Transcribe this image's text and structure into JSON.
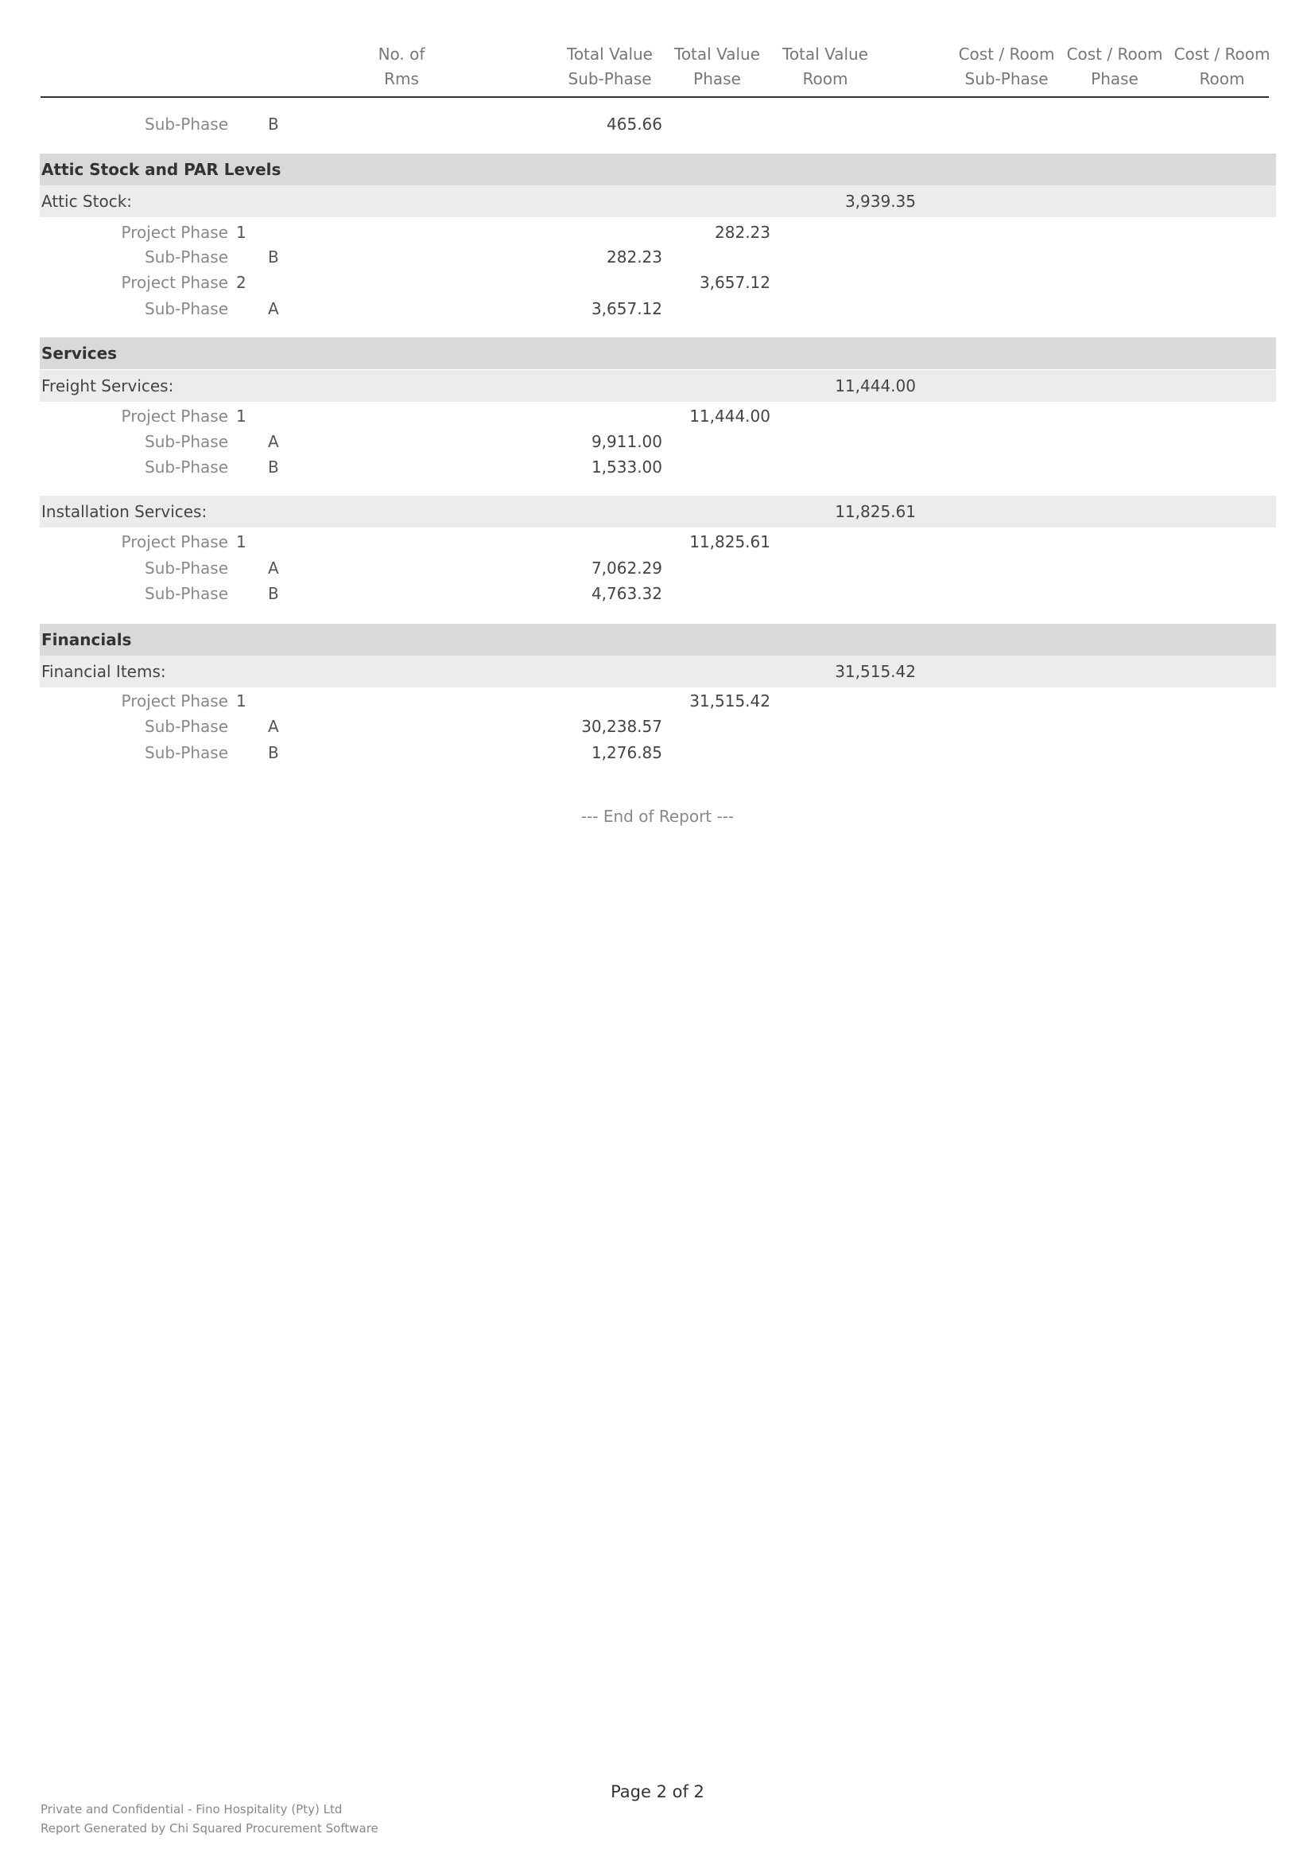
{
  "header": {
    "columns": [
      {
        "line1": "No. of",
        "line2": "Rms"
      },
      {
        "line1": "Total Value",
        "line2": "Sub-Phase"
      },
      {
        "line1": "Total Value",
        "line2": "Phase"
      },
      {
        "line1": "Total Value",
        "line2": "Room"
      },
      {
        "line1": "Cost / Room",
        "line2": "Sub-Phase"
      },
      {
        "line1": "Cost / Room",
        "line2": "Phase"
      },
      {
        "line1": "Cost / Room",
        "line2": "Room"
      }
    ]
  },
  "rows": [
    {
      "type": "sub",
      "label": "Sub-Phase",
      "code": "B",
      "subphase": "465.66"
    },
    {
      "type": "section",
      "label": "Attic Stock and PAR Levels"
    },
    {
      "type": "category",
      "label": "Attic Stock:",
      "room": "3,939.35"
    },
    {
      "type": "phase",
      "label": "Project Phase",
      "code": "1",
      "phase": "282.23"
    },
    {
      "type": "sub",
      "label": "Sub-Phase",
      "code": "B",
      "subphase": "282.23"
    },
    {
      "type": "phase",
      "label": "Project Phase",
      "code": "2",
      "phase": "3,657.12"
    },
    {
      "type": "sub",
      "label": "Sub-Phase",
      "code": "A",
      "subphase": "3,657.12"
    },
    {
      "type": "section",
      "label": "Services"
    },
    {
      "type": "category",
      "label": "Freight Services:",
      "room": "11,444.00"
    },
    {
      "type": "phase",
      "label": "Project Phase",
      "code": "1",
      "phase": "11,444.00"
    },
    {
      "type": "sub",
      "label": "Sub-Phase",
      "code": "A",
      "subphase": "9,911.00"
    },
    {
      "type": "sub",
      "label": "Sub-Phase",
      "code": "B",
      "subphase": "1,533.00"
    },
    {
      "type": "category",
      "label": "Installation Services:",
      "room": "11,825.61"
    },
    {
      "type": "phase",
      "label": "Project Phase",
      "code": "1",
      "phase": "11,825.61"
    },
    {
      "type": "sub",
      "label": "Sub-Phase",
      "code": "A",
      "subphase": "7,062.29"
    },
    {
      "type": "sub",
      "label": "Sub-Phase",
      "code": "B",
      "subphase": "4,763.32"
    },
    {
      "type": "section",
      "label": "Financials"
    },
    {
      "type": "category",
      "label": "Financial Items:",
      "room": "31,515.42"
    },
    {
      "type": "phase",
      "label": "Project Phase",
      "code": "1",
      "phase": "31,515.42"
    },
    {
      "type": "sub",
      "label": "Sub-Phase",
      "code": "A",
      "subphase": "30,238.57"
    },
    {
      "type": "sub",
      "label": "Sub-Phase",
      "code": "B",
      "subphase": "1,276.85"
    }
  ],
  "end_text": "--- End of Report ---",
  "footer": {
    "page": "Page 2 of 2",
    "line1": "Private and Confidential - Fino Hospitality (Pty) Ltd",
    "line2": "Report Generated by Chi Squared Procurement Software"
  },
  "colors": {
    "section_band": "#d9d9d9",
    "category_band": "#ececec"
  }
}
